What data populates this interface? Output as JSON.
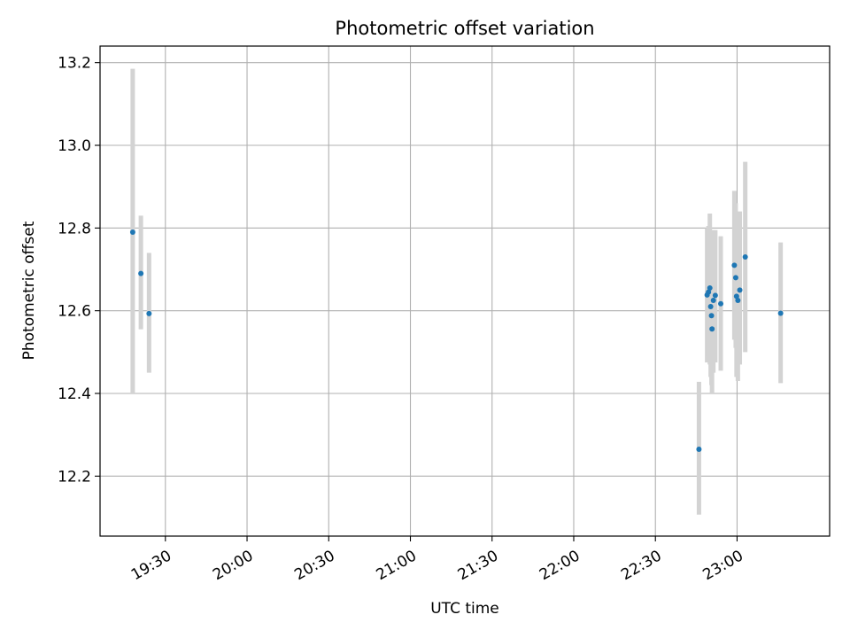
{
  "chart_data": {
    "type": "scatter",
    "title": "Photometric offset variation",
    "xlabel": "UTC time",
    "ylabel": "Photometric offset",
    "x_type": "time",
    "xlim": [
      "19:06",
      "23:34"
    ],
    "ylim": [
      12.055,
      13.24
    ],
    "x_ticks": [
      "19:30",
      "20:00",
      "20:30",
      "21:00",
      "21:30",
      "22:00",
      "22:30",
      "23:00"
    ],
    "y_ticks": [
      12.2,
      12.4,
      12.6,
      12.8,
      13.0,
      13.2
    ],
    "grid": true,
    "colors": {
      "point": "#1f77b4",
      "error_bar": "#d3d3d3"
    },
    "points": [
      {
        "x": "19:18",
        "y": 12.79,
        "yerr_low": 12.4,
        "yerr_high": 13.185
      },
      {
        "x": "19:21",
        "y": 12.69,
        "yerr_low": 12.555,
        "yerr_high": 12.83
      },
      {
        "x": "19:24",
        "y": 12.593,
        "yerr_low": 12.45,
        "yerr_high": 12.74
      },
      {
        "x": "22:46",
        "y": 12.265,
        "yerr_low": 12.107,
        "yerr_high": 12.428
      },
      {
        "x": "22:49",
        "y": 12.638,
        "yerr_low": 12.475,
        "yerr_high": 12.8
      },
      {
        "x": "22:49.5",
        "y": 12.645,
        "yerr_low": 12.49,
        "yerr_high": 12.805
      },
      {
        "x": "22:50",
        "y": 12.655,
        "yerr_low": 12.47,
        "yerr_high": 12.835
      },
      {
        "x": "22:50.3",
        "y": 12.61,
        "yerr_low": 12.44,
        "yerr_high": 12.79
      },
      {
        "x": "22:50.6",
        "y": 12.588,
        "yerr_low": 12.42,
        "yerr_high": 12.76
      },
      {
        "x": "22:50.8",
        "y": 12.556,
        "yerr_low": 12.4,
        "yerr_high": 12.72
      },
      {
        "x": "22:51.3",
        "y": 12.625,
        "yerr_low": 12.45,
        "yerr_high": 12.795
      },
      {
        "x": "22:52",
        "y": 12.637,
        "yerr_low": 12.475,
        "yerr_high": 12.795
      },
      {
        "x": "22:54",
        "y": 12.617,
        "yerr_low": 12.455,
        "yerr_high": 12.78
      },
      {
        "x": "22:59",
        "y": 12.71,
        "yerr_low": 12.53,
        "yerr_high": 12.89
      },
      {
        "x": "22:59.5",
        "y": 12.68,
        "yerr_low": 12.51,
        "yerr_high": 12.86
      },
      {
        "x": "22:59.8",
        "y": 12.635,
        "yerr_low": 12.44,
        "yerr_high": 12.83
      },
      {
        "x": "23:00.3",
        "y": 12.625,
        "yerr_low": 12.43,
        "yerr_high": 12.82
      },
      {
        "x": "23:01",
        "y": 12.65,
        "yerr_low": 12.47,
        "yerr_high": 12.84
      },
      {
        "x": "23:03",
        "y": 12.73,
        "yerr_low": 12.5,
        "yerr_high": 12.96
      },
      {
        "x": "23:16",
        "y": 12.594,
        "yerr_low": 12.425,
        "yerr_high": 12.765
      }
    ]
  }
}
